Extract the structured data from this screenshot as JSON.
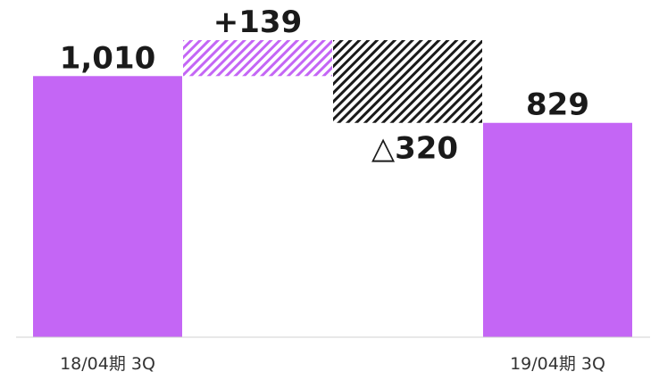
{
  "chart_data": {
    "type": "waterfall",
    "title": "",
    "xlabel": "",
    "ylabel": "",
    "ylim": [
      0,
      1149
    ],
    "grid": false,
    "legend": "none",
    "steps": [
      {
        "category": "18/04期 3Q",
        "kind": "total",
        "value": 1010,
        "label": "1,010",
        "color": "#c466f5"
      },
      {
        "category": "",
        "kind": "increase",
        "value": 139,
        "label": "+139",
        "color": "#c466f5",
        "pattern": "hatched"
      },
      {
        "category": "",
        "kind": "decrease",
        "value": -320,
        "label": "△320",
        "color": "#1a1a1a",
        "pattern": "hatched"
      },
      {
        "category": "19/04期 3Q",
        "kind": "total",
        "value": 829,
        "label": "829",
        "color": "#c466f5"
      }
    ]
  }
}
